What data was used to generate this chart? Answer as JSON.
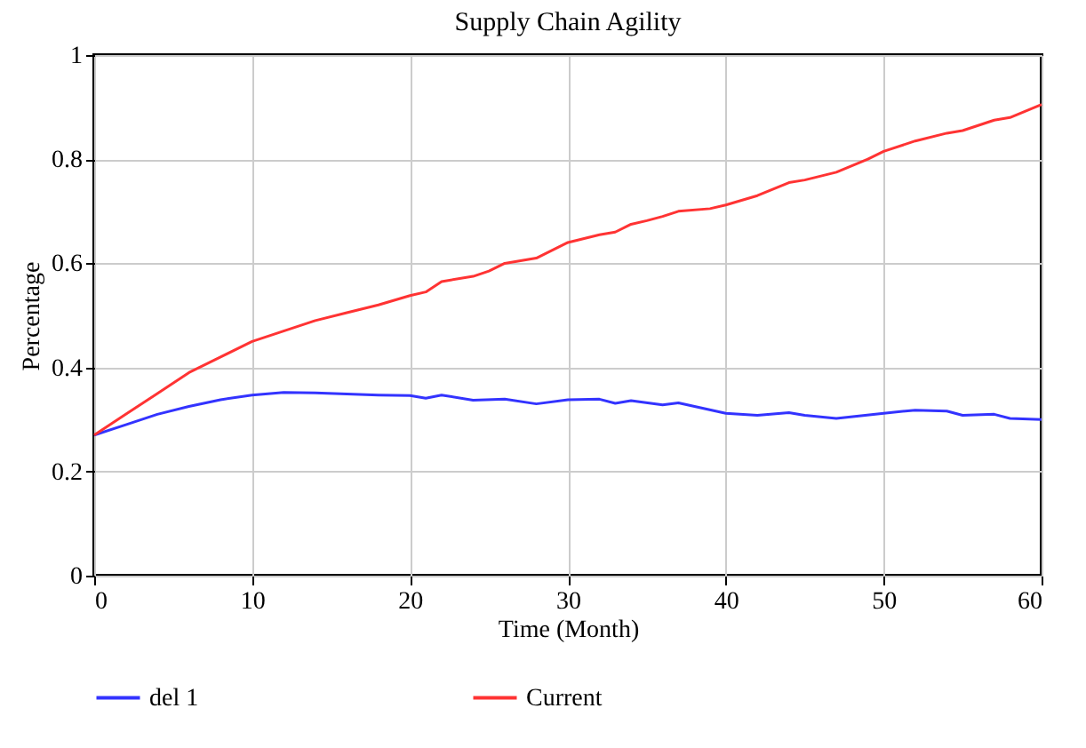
{
  "chart_data": {
    "type": "line",
    "title": "Supply Chain Agility",
    "xlabel": "Time (Month)",
    "ylabel": "Percentage",
    "xlim": [
      0,
      60
    ],
    "xticks": [
      0,
      10,
      20,
      30,
      40,
      50,
      60
    ],
    "ylim": [
      0,
      1
    ],
    "yticks": [
      0,
      0.2,
      0.4,
      0.6,
      0.8,
      1
    ],
    "grid": true,
    "legend": "bottom",
    "line_style": "solid",
    "marker": "none",
    "series": [
      {
        "name": "del 1",
        "color": "#3333ff",
        "x": [
          0,
          2,
          4,
          6,
          8,
          10,
          12,
          14,
          16,
          18,
          20,
          21,
          22,
          24,
          26,
          28,
          30,
          32,
          33,
          34,
          36,
          37,
          40,
          42,
          44,
          45,
          47,
          50,
          52,
          54,
          55,
          57,
          58,
          60
        ],
        "values": [
          0.27,
          0.29,
          0.31,
          0.325,
          0.338,
          0.347,
          0.352,
          0.351,
          0.349,
          0.347,
          0.346,
          0.341,
          0.347,
          0.337,
          0.339,
          0.33,
          0.338,
          0.339,
          0.331,
          0.336,
          0.328,
          0.332,
          0.312,
          0.308,
          0.313,
          0.308,
          0.302,
          0.312,
          0.318,
          0.316,
          0.308,
          0.31,
          0.302,
          0.3
        ]
      },
      {
        "name": "Current",
        "color": "#ff3333",
        "x": [
          0,
          2,
          4,
          6,
          8,
          10,
          12,
          14,
          16,
          18,
          20,
          21,
          22,
          24,
          25,
          26,
          28,
          30,
          32,
          33,
          34,
          35,
          36,
          37,
          39,
          40,
          42,
          44,
          45,
          47,
          49,
          50,
          52,
          54,
          55,
          57,
          58,
          60
        ],
        "values": [
          0.27,
          0.31,
          0.35,
          0.39,
          0.42,
          0.45,
          0.47,
          0.49,
          0.505,
          0.52,
          0.538,
          0.545,
          0.565,
          0.575,
          0.585,
          0.6,
          0.61,
          0.64,
          0.655,
          0.66,
          0.675,
          0.682,
          0.69,
          0.7,
          0.705,
          0.712,
          0.73,
          0.755,
          0.76,
          0.775,
          0.8,
          0.815,
          0.835,
          0.85,
          0.855,
          0.875,
          0.88,
          0.905
        ]
      }
    ]
  }
}
